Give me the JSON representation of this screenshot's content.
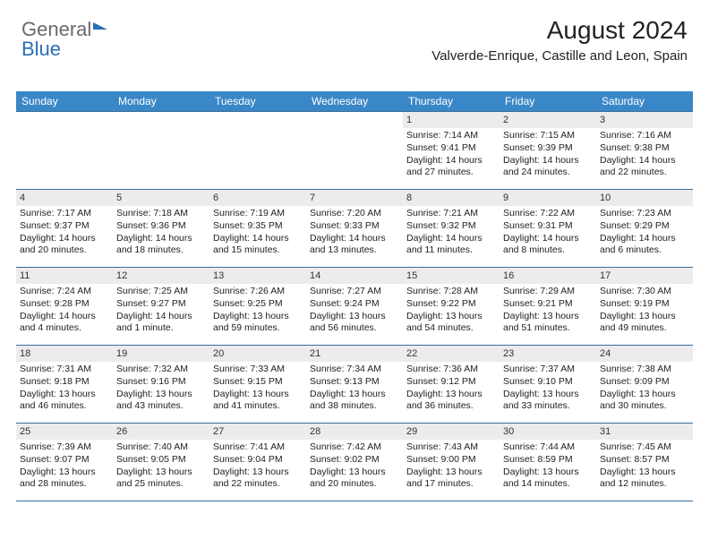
{
  "logo": {
    "part1": "General",
    "part2": "Blue"
  },
  "header": {
    "month_title": "August 2024",
    "location": "Valverde-Enrique, Castille and Leon, Spain"
  },
  "dayNames": [
    "Sunday",
    "Monday",
    "Tuesday",
    "Wednesday",
    "Thursday",
    "Friday",
    "Saturday"
  ],
  "colors": {
    "header_bg": "#3a87c7",
    "header_text": "#ffffff",
    "row_border": "#3a6c9a",
    "daynum_bg": "#ececec",
    "text": "#222222",
    "logo_gray": "#6a6a6a",
    "logo_blue": "#2a6fb3"
  },
  "typography": {
    "month_title_fontsize": 28,
    "location_fontsize": 15,
    "dayheader_fontsize": 12,
    "daynum_fontsize": 11,
    "body_fontsize": 10.5
  },
  "weeks": [
    [
      null,
      null,
      null,
      null,
      {
        "num": "1",
        "sunrise": "Sunrise: 7:14 AM",
        "sunset": "Sunset: 9:41 PM",
        "daylight": "Daylight: 14 hours and 27 minutes."
      },
      {
        "num": "2",
        "sunrise": "Sunrise: 7:15 AM",
        "sunset": "Sunset: 9:39 PM",
        "daylight": "Daylight: 14 hours and 24 minutes."
      },
      {
        "num": "3",
        "sunrise": "Sunrise: 7:16 AM",
        "sunset": "Sunset: 9:38 PM",
        "daylight": "Daylight: 14 hours and 22 minutes."
      }
    ],
    [
      {
        "num": "4",
        "sunrise": "Sunrise: 7:17 AM",
        "sunset": "Sunset: 9:37 PM",
        "daylight": "Daylight: 14 hours and 20 minutes."
      },
      {
        "num": "5",
        "sunrise": "Sunrise: 7:18 AM",
        "sunset": "Sunset: 9:36 PM",
        "daylight": "Daylight: 14 hours and 18 minutes."
      },
      {
        "num": "6",
        "sunrise": "Sunrise: 7:19 AM",
        "sunset": "Sunset: 9:35 PM",
        "daylight": "Daylight: 14 hours and 15 minutes."
      },
      {
        "num": "7",
        "sunrise": "Sunrise: 7:20 AM",
        "sunset": "Sunset: 9:33 PM",
        "daylight": "Daylight: 14 hours and 13 minutes."
      },
      {
        "num": "8",
        "sunrise": "Sunrise: 7:21 AM",
        "sunset": "Sunset: 9:32 PM",
        "daylight": "Daylight: 14 hours and 11 minutes."
      },
      {
        "num": "9",
        "sunrise": "Sunrise: 7:22 AM",
        "sunset": "Sunset: 9:31 PM",
        "daylight": "Daylight: 14 hours and 8 minutes."
      },
      {
        "num": "10",
        "sunrise": "Sunrise: 7:23 AM",
        "sunset": "Sunset: 9:29 PM",
        "daylight": "Daylight: 14 hours and 6 minutes."
      }
    ],
    [
      {
        "num": "11",
        "sunrise": "Sunrise: 7:24 AM",
        "sunset": "Sunset: 9:28 PM",
        "daylight": "Daylight: 14 hours and 4 minutes."
      },
      {
        "num": "12",
        "sunrise": "Sunrise: 7:25 AM",
        "sunset": "Sunset: 9:27 PM",
        "daylight": "Daylight: 14 hours and 1 minute."
      },
      {
        "num": "13",
        "sunrise": "Sunrise: 7:26 AM",
        "sunset": "Sunset: 9:25 PM",
        "daylight": "Daylight: 13 hours and 59 minutes."
      },
      {
        "num": "14",
        "sunrise": "Sunrise: 7:27 AM",
        "sunset": "Sunset: 9:24 PM",
        "daylight": "Daylight: 13 hours and 56 minutes."
      },
      {
        "num": "15",
        "sunrise": "Sunrise: 7:28 AM",
        "sunset": "Sunset: 9:22 PM",
        "daylight": "Daylight: 13 hours and 54 minutes."
      },
      {
        "num": "16",
        "sunrise": "Sunrise: 7:29 AM",
        "sunset": "Sunset: 9:21 PM",
        "daylight": "Daylight: 13 hours and 51 minutes."
      },
      {
        "num": "17",
        "sunrise": "Sunrise: 7:30 AM",
        "sunset": "Sunset: 9:19 PM",
        "daylight": "Daylight: 13 hours and 49 minutes."
      }
    ],
    [
      {
        "num": "18",
        "sunrise": "Sunrise: 7:31 AM",
        "sunset": "Sunset: 9:18 PM",
        "daylight": "Daylight: 13 hours and 46 minutes."
      },
      {
        "num": "19",
        "sunrise": "Sunrise: 7:32 AM",
        "sunset": "Sunset: 9:16 PM",
        "daylight": "Daylight: 13 hours and 43 minutes."
      },
      {
        "num": "20",
        "sunrise": "Sunrise: 7:33 AM",
        "sunset": "Sunset: 9:15 PM",
        "daylight": "Daylight: 13 hours and 41 minutes."
      },
      {
        "num": "21",
        "sunrise": "Sunrise: 7:34 AM",
        "sunset": "Sunset: 9:13 PM",
        "daylight": "Daylight: 13 hours and 38 minutes."
      },
      {
        "num": "22",
        "sunrise": "Sunrise: 7:36 AM",
        "sunset": "Sunset: 9:12 PM",
        "daylight": "Daylight: 13 hours and 36 minutes."
      },
      {
        "num": "23",
        "sunrise": "Sunrise: 7:37 AM",
        "sunset": "Sunset: 9:10 PM",
        "daylight": "Daylight: 13 hours and 33 minutes."
      },
      {
        "num": "24",
        "sunrise": "Sunrise: 7:38 AM",
        "sunset": "Sunset: 9:09 PM",
        "daylight": "Daylight: 13 hours and 30 minutes."
      }
    ],
    [
      {
        "num": "25",
        "sunrise": "Sunrise: 7:39 AM",
        "sunset": "Sunset: 9:07 PM",
        "daylight": "Daylight: 13 hours and 28 minutes."
      },
      {
        "num": "26",
        "sunrise": "Sunrise: 7:40 AM",
        "sunset": "Sunset: 9:05 PM",
        "daylight": "Daylight: 13 hours and 25 minutes."
      },
      {
        "num": "27",
        "sunrise": "Sunrise: 7:41 AM",
        "sunset": "Sunset: 9:04 PM",
        "daylight": "Daylight: 13 hours and 22 minutes."
      },
      {
        "num": "28",
        "sunrise": "Sunrise: 7:42 AM",
        "sunset": "Sunset: 9:02 PM",
        "daylight": "Daylight: 13 hours and 20 minutes."
      },
      {
        "num": "29",
        "sunrise": "Sunrise: 7:43 AM",
        "sunset": "Sunset: 9:00 PM",
        "daylight": "Daylight: 13 hours and 17 minutes."
      },
      {
        "num": "30",
        "sunrise": "Sunrise: 7:44 AM",
        "sunset": "Sunset: 8:59 PM",
        "daylight": "Daylight: 13 hours and 14 minutes."
      },
      {
        "num": "31",
        "sunrise": "Sunrise: 7:45 AM",
        "sunset": "Sunset: 8:57 PM",
        "daylight": "Daylight: 13 hours and 12 minutes."
      }
    ]
  ]
}
